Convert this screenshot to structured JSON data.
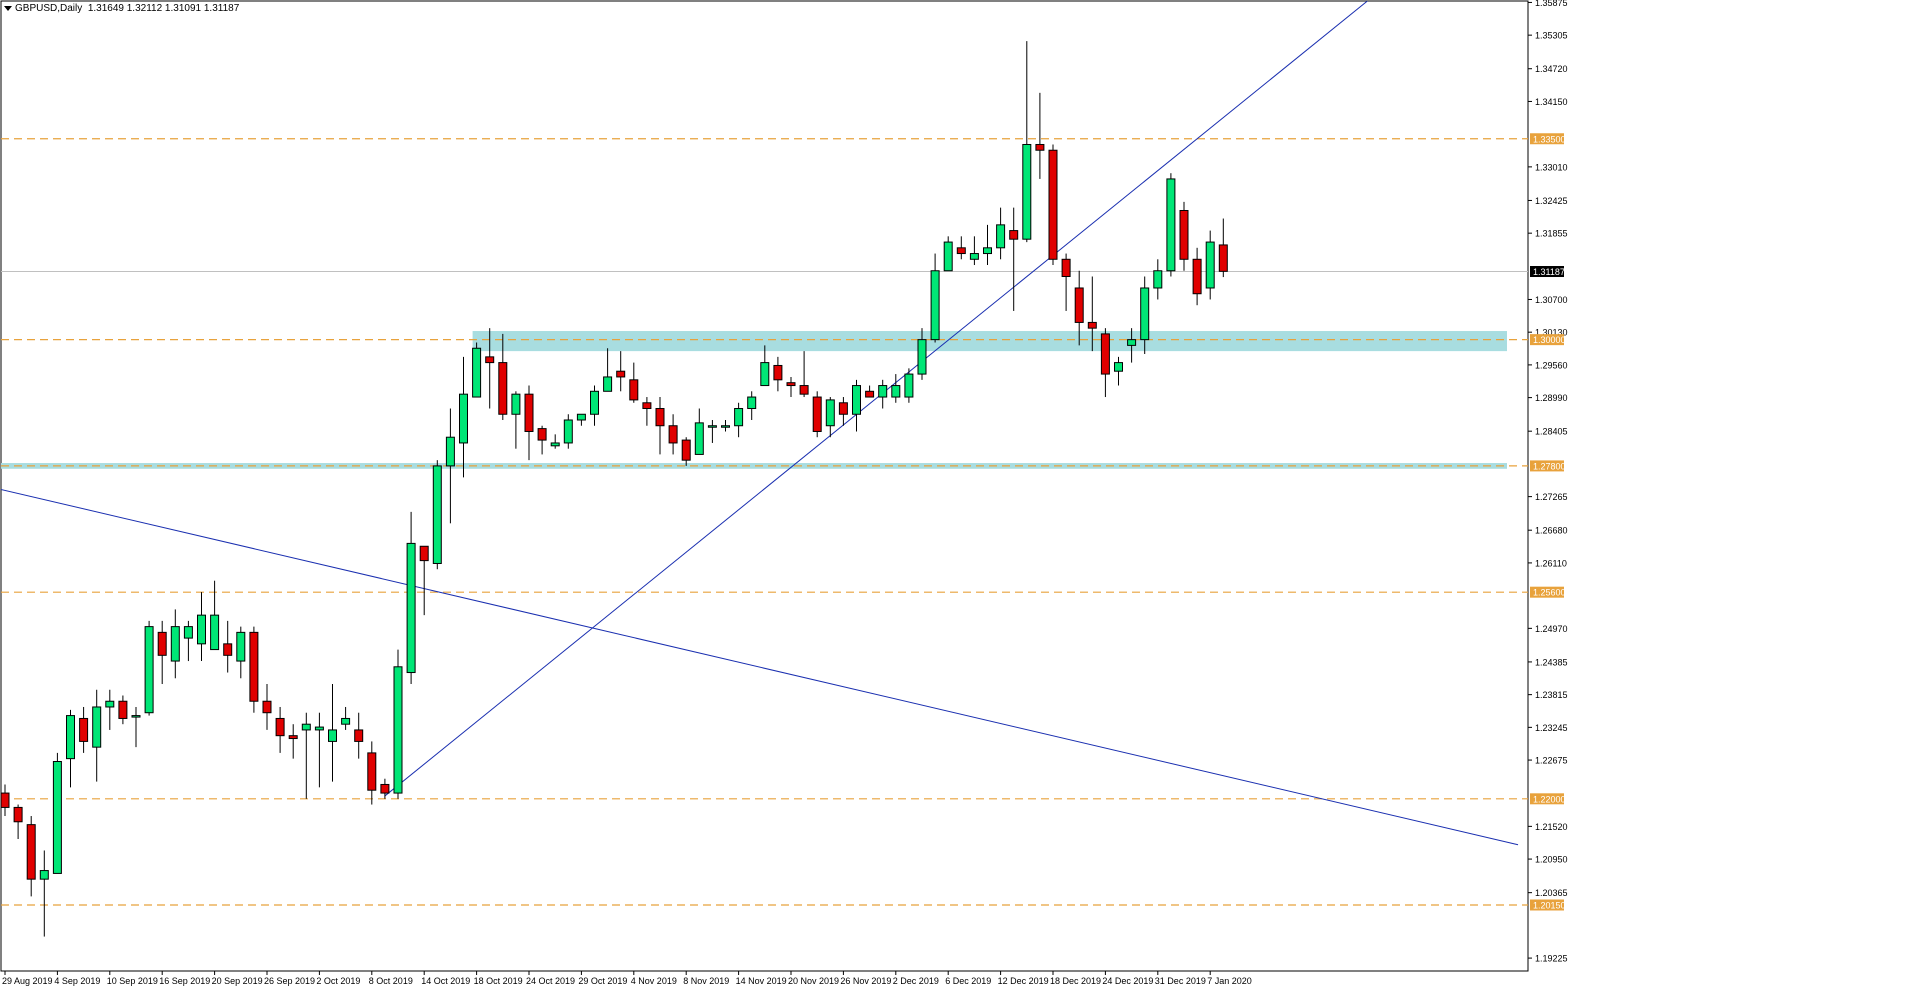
{
  "header": {
    "symbol": "GBPUSD,Daily",
    "ohlc": "1.31649 1.32112 1.31091 1.31187"
  },
  "colors": {
    "bull": "#00e676",
    "bear": "#e00000",
    "level_line": "#e8a23c",
    "zone": "#a8dde0",
    "trendline": "#1a2fb0",
    "current_price_bg": "#000000",
    "level_label_bg": "#e8a23c"
  },
  "chart_data": {
    "type": "candlestick",
    "y_axis": {
      "range": [
        1.19,
        1.359
      ],
      "ticks": [
        1.35875,
        1.35305,
        1.3472,
        1.3415,
        1.3301,
        1.32425,
        1.31855,
        1.307,
        1.3013,
        1.2956,
        1.2899,
        1.28405,
        1.27265,
        1.2668,
        1.2611,
        1.2497,
        1.24385,
        1.23815,
        1.23245,
        1.22675,
        1.2152,
        1.2095,
        1.20365,
        1.19225
      ],
      "tick_labels": [
        "1.35875",
        "1.35305",
        "1.34720",
        "1.34150",
        "1.33010",
        "1.32425",
        "1.31855",
        "1.30700",
        "1.30130",
        "1.29560",
        "1.28990",
        "1.28405",
        "1.27265",
        "1.26680",
        "1.26110",
        "1.24970",
        "1.24385",
        "1.23815",
        "1.23245",
        "1.22675",
        "1.21520",
        "1.20950",
        "1.20365",
        "1.19225"
      ]
    },
    "x_axis": {
      "labels": [
        "29 Aug 2019",
        "4 Sep 2019",
        "10 Sep 2019",
        "16 Sep 2019",
        "20 Sep 2019",
        "26 Sep 2019",
        "2 Oct 2019",
        "8 Oct 2019",
        "14 Oct 2019",
        "18 Oct 2019",
        "24 Oct 2019",
        "29 Oct 2019",
        "4 Nov 2019",
        "8 Nov 2019",
        "14 Nov 2019",
        "20 Nov 2019",
        "26 Nov 2019",
        "2 Dec 2019",
        "6 Dec 2019",
        "12 Dec 2019",
        "18 Dec 2019",
        "24 Dec 2019",
        "31 Dec 2019",
        "7 Jan 2020"
      ],
      "label_index": [
        0,
        4,
        8,
        12,
        16,
        20,
        24,
        28,
        32,
        36,
        40,
        44,
        48,
        52,
        56,
        60,
        64,
        68,
        72,
        76,
        80,
        84,
        88,
        92
      ]
    },
    "candles": [
      [
        1.221,
        1.2225,
        1.217,
        1.2185
      ],
      [
        1.2185,
        1.219,
        1.213,
        1.216
      ],
      [
        1.2155,
        1.217,
        1.203,
        1.206
      ],
      [
        1.206,
        1.211,
        1.196,
        1.2075
      ],
      [
        1.207,
        1.228,
        1.207,
        1.2265
      ],
      [
        1.227,
        1.2355,
        1.222,
        1.2345
      ],
      [
        1.234,
        1.236,
        1.228,
        1.23
      ],
      [
        1.229,
        1.239,
        1.223,
        1.236
      ],
      [
        1.236,
        1.239,
        1.232,
        1.237
      ],
      [
        1.237,
        1.238,
        1.233,
        1.234
      ],
      [
        1.2345,
        1.236,
        1.229,
        1.2345
      ],
      [
        1.235,
        1.251,
        1.2345,
        1.25
      ],
      [
        1.249,
        1.251,
        1.24,
        1.245
      ],
      [
        1.244,
        1.253,
        1.241,
        1.25
      ],
      [
        1.248,
        1.251,
        1.244,
        1.25
      ],
      [
        1.247,
        1.256,
        1.244,
        1.252
      ],
      [
        1.246,
        1.258,
        1.246,
        1.252
      ],
      [
        1.247,
        1.251,
        1.242,
        1.245
      ],
      [
        1.244,
        1.25,
        1.241,
        1.249
      ],
      [
        1.249,
        1.25,
        1.235,
        1.237
      ],
      [
        1.237,
        1.24,
        1.232,
        1.235
      ],
      [
        1.234,
        1.236,
        1.228,
        1.231
      ],
      [
        1.231,
        1.233,
        1.227,
        1.2305
      ],
      [
        1.232,
        1.235,
        1.22,
        1.233
      ],
      [
        1.232,
        1.235,
        1.222,
        1.2325
      ],
      [
        1.23,
        1.24,
        1.223,
        1.232
      ],
      [
        1.233,
        1.236,
        1.232,
        1.234
      ],
      [
        1.232,
        1.235,
        1.227,
        1.23
      ],
      [
        1.228,
        1.23,
        1.219,
        1.2215
      ],
      [
        1.2225,
        1.2235,
        1.22,
        1.221
      ],
      [
        1.221,
        1.246,
        1.22,
        1.243
      ],
      [
        1.242,
        1.27,
        1.24,
        1.2645
      ],
      [
        1.264,
        1.264,
        1.252,
        1.2615
      ],
      [
        1.261,
        1.279,
        1.26,
        1.278
      ],
      [
        1.278,
        1.288,
        1.268,
        1.283
      ],
      [
        1.282,
        1.297,
        1.276,
        1.2905
      ],
      [
        1.29,
        1.2995,
        1.29,
        1.2985
      ],
      [
        1.297,
        1.302,
        1.288,
        1.296
      ],
      [
        1.296,
        1.301,
        1.286,
        1.287
      ],
      [
        1.287,
        1.291,
        1.281,
        1.2905
      ],
      [
        1.2905,
        1.292,
        1.279,
        1.284
      ],
      [
        1.2845,
        1.285,
        1.28,
        1.2825
      ],
      [
        1.2815,
        1.2835,
        1.281,
        1.282
      ],
      [
        1.282,
        1.287,
        1.281,
        1.286
      ],
      [
        1.286,
        1.287,
        1.285,
        1.287
      ],
      [
        1.287,
        1.292,
        1.285,
        1.291
      ],
      [
        1.291,
        1.2985,
        1.291,
        1.2935
      ],
      [
        1.2945,
        1.298,
        1.291,
        1.2935
      ],
      [
        1.293,
        1.296,
        1.289,
        1.2895
      ],
      [
        1.289,
        1.29,
        1.285,
        1.288
      ],
      [
        1.288,
        1.29,
        1.28,
        1.285
      ],
      [
        1.285,
        1.287,
        1.28,
        1.282
      ],
      [
        1.2825,
        1.283,
        1.278,
        1.279
      ],
      [
        1.28,
        1.288,
        1.28,
        1.2855
      ],
      [
        1.285,
        1.286,
        1.282,
        1.285
      ],
      [
        1.285,
        1.286,
        1.284,
        1.285
      ],
      [
        1.285,
        1.289,
        1.283,
        1.288
      ],
      [
        1.288,
        1.291,
        1.286,
        1.29
      ],
      [
        1.292,
        1.299,
        1.292,
        1.296
      ],
      [
        1.2955,
        1.297,
        1.291,
        1.293
      ],
      [
        1.2925,
        1.2935,
        1.29,
        1.292
      ],
      [
        1.292,
        1.298,
        1.29,
        1.2905
      ],
      [
        1.29,
        1.291,
        1.283,
        1.284
      ],
      [
        1.285,
        1.29,
        1.283,
        1.2895
      ],
      [
        1.289,
        1.29,
        1.285,
        1.287
      ],
      [
        1.287,
        1.293,
        1.284,
        1.292
      ],
      [
        1.291,
        1.292,
        1.29,
        1.29
      ],
      [
        1.29,
        1.293,
        1.288,
        1.292
      ],
      [
        1.29,
        1.294,
        1.289,
        1.292
      ],
      [
        1.29,
        1.295,
        1.289,
        1.294
      ],
      [
        1.294,
        1.302,
        1.293,
        1.3
      ],
      [
        1.3,
        1.315,
        1.2995,
        1.312
      ],
      [
        1.312,
        1.318,
        1.312,
        1.317
      ],
      [
        1.316,
        1.318,
        1.314,
        1.315
      ],
      [
        1.314,
        1.318,
        1.313,
        1.315
      ],
      [
        1.315,
        1.32,
        1.313,
        1.316
      ],
      [
        1.316,
        1.323,
        1.314,
        1.32
      ],
      [
        1.319,
        1.323,
        1.305,
        1.3175
      ],
      [
        1.3175,
        1.352,
        1.317,
        1.334
      ],
      [
        1.334,
        1.343,
        1.328,
        1.333
      ],
      [
        1.333,
        1.334,
        1.313,
        1.314
      ],
      [
        1.314,
        1.315,
        1.305,
        1.311
      ],
      [
        1.309,
        1.312,
        1.299,
        1.303
      ],
      [
        1.303,
        1.311,
        1.298,
        1.302
      ],
      [
        1.301,
        1.302,
        1.29,
        1.294
      ],
      [
        1.2945,
        1.297,
        1.292,
        1.296
      ],
      [
        1.299,
        1.302,
        1.296,
        1.3
      ],
      [
        1.3,
        1.311,
        1.2975,
        1.309
      ],
      [
        1.309,
        1.314,
        1.307,
        1.312
      ],
      [
        1.312,
        1.329,
        1.311,
        1.328
      ],
      [
        1.3225,
        1.324,
        1.312,
        1.314
      ],
      [
        1.314,
        1.316,
        1.306,
        1.308
      ],
      [
        1.309,
        1.319,
        1.307,
        1.317
      ],
      [
        1.3165,
        1.3211,
        1.3109,
        1.3119
      ]
    ],
    "levels": [
      {
        "value": 1.335,
        "label": "1.33500"
      },
      {
        "value": 1.3,
        "label": "1.30000"
      },
      {
        "value": 1.278,
        "label": "1.27800"
      },
      {
        "value": 1.256,
        "label": "1.25600"
      },
      {
        "value": 1.22,
        "label": "1.22000"
      },
      {
        "value": 1.2015,
        "label": "1.20150"
      }
    ],
    "zones": [
      {
        "top": 1.3015,
        "bottom": 1.298,
        "from_index": 36
      },
      {
        "top": 1.2785,
        "bottom": 1.2775,
        "from_index": 0
      }
    ],
    "trendlines": [
      {
        "from": {
          "index": 29,
          "value": 1.2205
        },
        "to": {
          "index": 104,
          "value": 1.359
        }
      },
      {
        "from": {
          "index": -0.5,
          "value": 1.274
        },
        "to": {
          "index": 115.5,
          "value": 1.212
        }
      }
    ],
    "current_price": {
      "value": 1.31187,
      "label": "1.31187"
    }
  }
}
